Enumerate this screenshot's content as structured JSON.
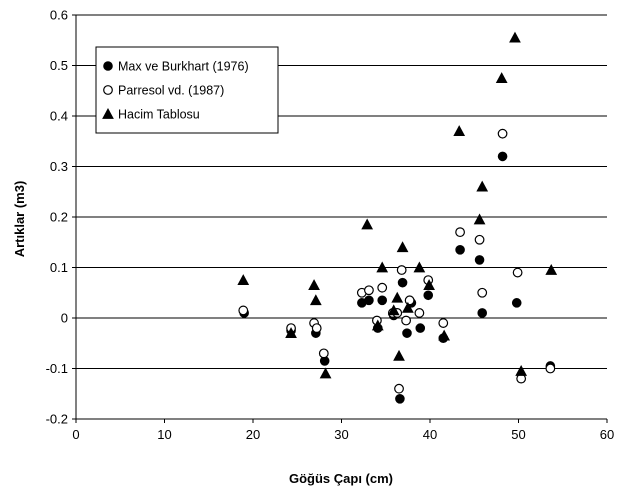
{
  "chart_data": {
    "type": "scatter",
    "xlabel": "Göğüs Çapı (cm)",
    "ylabel": "Artıklar (m3)",
    "xlim": [
      0,
      60
    ],
    "ylim": [
      -0.2,
      0.6
    ],
    "x_ticks": [
      0,
      10,
      20,
      30,
      40,
      50,
      60
    ],
    "y_ticks": [
      -0.2,
      -0.1,
      0,
      0.1,
      0.2,
      0.3,
      0.4,
      0.5,
      0.6
    ],
    "grid": "horizontal",
    "legend_position": "top-left",
    "series": [
      {
        "name": "Max ve Burkhart (1976)",
        "marker": "filled-circle",
        "color": "#000000",
        "points": [
          [
            19.0,
            0.01
          ],
          [
            24.3,
            -0.025
          ],
          [
            27.1,
            -0.03
          ],
          [
            28.1,
            -0.085
          ],
          [
            32.3,
            0.03
          ],
          [
            33.1,
            0.035
          ],
          [
            34.1,
            -0.02
          ],
          [
            34.6,
            0.035
          ],
          [
            35.9,
            0.005
          ],
          [
            36.2,
            0.01
          ],
          [
            36.6,
            -0.16
          ],
          [
            36.9,
            0.07
          ],
          [
            37.4,
            -0.03
          ],
          [
            37.9,
            0.03
          ],
          [
            38.9,
            -0.02
          ],
          [
            39.8,
            0.045
          ],
          [
            41.5,
            -0.04
          ],
          [
            43.4,
            0.135
          ],
          [
            45.6,
            0.115
          ],
          [
            45.9,
            0.01
          ],
          [
            48.2,
            0.32
          ],
          [
            49.8,
            0.03
          ],
          [
            53.6,
            -0.095
          ]
        ]
      },
      {
        "name": "Parresol vd. (1987)",
        "marker": "open-circle",
        "color": "#000000",
        "points": [
          [
            18.9,
            0.015
          ],
          [
            24.3,
            -0.02
          ],
          [
            26.9,
            -0.01
          ],
          [
            27.2,
            -0.02
          ],
          [
            28.0,
            -0.07
          ],
          [
            32.3,
            0.05
          ],
          [
            33.1,
            0.055
          ],
          [
            34.0,
            -0.005
          ],
          [
            34.6,
            0.06
          ],
          [
            35.8,
            0.01
          ],
          [
            36.3,
            0.01
          ],
          [
            36.5,
            -0.14
          ],
          [
            36.8,
            0.095
          ],
          [
            37.3,
            -0.005
          ],
          [
            37.7,
            0.035
          ],
          [
            38.8,
            0.01
          ],
          [
            39.8,
            0.075
          ],
          [
            41.5,
            -0.01
          ],
          [
            43.4,
            0.17
          ],
          [
            45.6,
            0.155
          ],
          [
            45.9,
            0.05
          ],
          [
            48.2,
            0.365
          ],
          [
            49.9,
            0.09
          ],
          [
            50.3,
            -0.12
          ],
          [
            53.6,
            -0.1
          ]
        ]
      },
      {
        "name": "Hacim Tablosu",
        "marker": "filled-triangle",
        "color": "#000000",
        "points": [
          [
            18.9,
            0.075
          ],
          [
            24.3,
            -0.03
          ],
          [
            26.9,
            0.065
          ],
          [
            27.1,
            0.035
          ],
          [
            28.2,
            -0.11
          ],
          [
            32.9,
            0.185
          ],
          [
            34.1,
            -0.015
          ],
          [
            34.6,
            0.1
          ],
          [
            35.9,
            0.015
          ],
          [
            36.3,
            0.04
          ],
          [
            36.5,
            -0.075
          ],
          [
            36.9,
            0.14
          ],
          [
            37.5,
            0.02
          ],
          [
            38.8,
            0.1
          ],
          [
            39.9,
            0.065
          ],
          [
            41.6,
            -0.035
          ],
          [
            43.3,
            0.37
          ],
          [
            45.6,
            0.195
          ],
          [
            45.9,
            0.26
          ],
          [
            48.1,
            0.475
          ],
          [
            49.6,
            0.555
          ],
          [
            50.3,
            -0.105
          ],
          [
            53.7,
            0.095
          ]
        ]
      }
    ]
  }
}
